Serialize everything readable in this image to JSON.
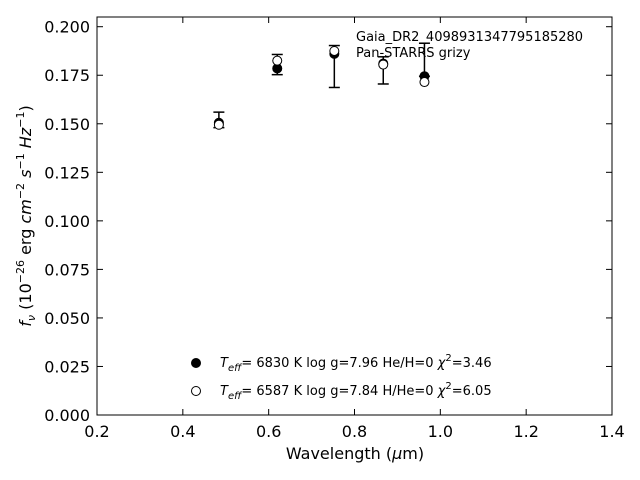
{
  "chart_data": {
    "type": "scatter",
    "xlabel": "Wavelength (μm)",
    "ylabel": "f_ν (10^-26 erg cm^-2 s^-1 Hz^-1)",
    "xlim": [
      0.2,
      1.4
    ],
    "ylim": [
      0.0,
      0.205
    ],
    "xticks": [
      "0.2",
      "0.4",
      "0.6",
      "0.8",
      "1.0",
      "1.2",
      "1.4"
    ],
    "yticks": [
      "0.000",
      "0.025",
      "0.050",
      "0.075",
      "0.100",
      "0.125",
      "0.150",
      "0.175",
      "0.200"
    ],
    "grid": false,
    "annotations": [
      "Gaia_DR2_4098931347795185280",
      "Pan-STARRS grizy"
    ],
    "observed": {
      "x": [
        0.484,
        0.62,
        0.753,
        0.867,
        0.963
      ],
      "y": [
        0.152,
        0.1805,
        0.1795,
        0.1775,
        0.183
      ],
      "yerr": [
        0.004,
        0.0052,
        0.0108,
        0.007,
        0.0085
      ]
    },
    "series": [
      {
        "name": "T_eff= 6830 K  log g=7.96  He/H=0  χ²=3.46",
        "marker": "filled-circle",
        "x": [
          0.484,
          0.62,
          0.753,
          0.867,
          0.963
        ],
        "y": [
          0.1505,
          0.1785,
          0.186,
          0.181,
          0.1745
        ]
      },
      {
        "name": "T_eff= 6587 K  log g=7.84  H/He=0  χ²=6.05",
        "marker": "open-circle",
        "x": [
          0.484,
          0.62,
          0.753,
          0.867,
          0.963
        ],
        "y": [
          0.1495,
          0.1825,
          0.1875,
          0.1805,
          0.1715
        ]
      }
    ],
    "legend": {
      "placement": "lower-center",
      "entries": [
        {
          "teff": "6830 K",
          "logg": "log g=7.96",
          "comp": "He/H=0",
          "chi": "=3.46"
        },
        {
          "teff": "6587 K",
          "logg": "log g=7.84",
          "comp": "H/He=0",
          "chi": "=6.05"
        }
      ]
    }
  }
}
